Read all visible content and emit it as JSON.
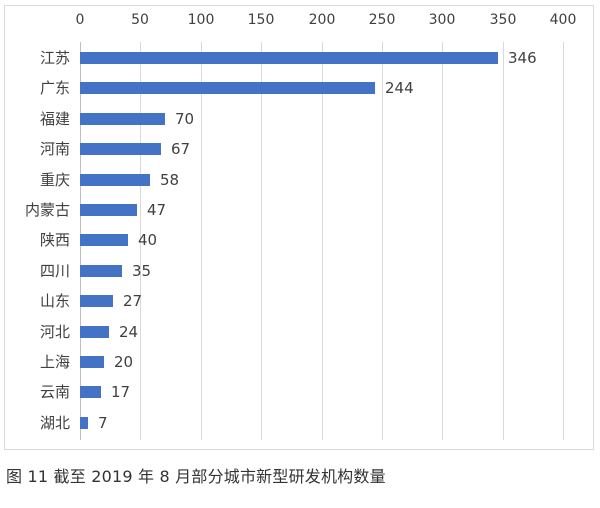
{
  "chart_data": {
    "type": "bar",
    "orientation": "horizontal",
    "title": "",
    "caption": "图 11  截至 2019 年 8 月部分城市新型研发机构数量",
    "xlabel": "",
    "ylabel": "",
    "xlim": [
      0,
      400
    ],
    "x_ticks": [
      "0",
      "50",
      "100",
      "150",
      "200",
      "250",
      "300",
      "350",
      "400"
    ],
    "x_axis_position": "top",
    "grid": true,
    "legend": null,
    "bar_color": "#4472c4",
    "categories": [
      "江苏",
      "广东",
      "福建",
      "河南",
      "重庆",
      "内蒙古",
      "陕西",
      "四川",
      "山东",
      "河北",
      "上海",
      "云南",
      "湖北"
    ],
    "values": [
      346,
      244,
      70,
      67,
      58,
      47,
      40,
      35,
      27,
      24,
      20,
      17,
      7
    ],
    "data_labels": [
      "346",
      "244",
      "70",
      "67",
      "58",
      "47",
      "40",
      "35",
      "27",
      "24",
      "20",
      "17",
      "7"
    ]
  }
}
